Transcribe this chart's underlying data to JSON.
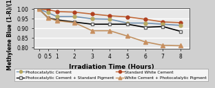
{
  "x": [
    0,
    0.5,
    1,
    2,
    3,
    4,
    5,
    6,
    7,
    8
  ],
  "photocatalytic_cement": [
    1.0,
    0.982,
    0.962,
    0.962,
    0.95,
    0.948,
    0.928,
    0.928,
    0.922,
    0.916
  ],
  "photocatalytic_cement_std_pigment": [
    1.0,
    0.955,
    0.945,
    0.933,
    0.922,
    0.922,
    0.922,
    0.906,
    0.91,
    0.885
  ],
  "standard_white_cement": [
    1.0,
    0.998,
    0.988,
    0.985,
    0.975,
    0.966,
    0.96,
    0.948,
    0.934,
    0.93
  ],
  "white_cement_photocatalytic_pigment": [
    1.0,
    0.955,
    0.94,
    0.93,
    0.888,
    0.888,
    0.86,
    0.83,
    0.812,
    0.81
  ],
  "series_colors": {
    "photocatalytic_cement": "#b8a860",
    "photocatalytic_cement_std_pigment": "#909090",
    "standard_white_cement": "#b04020",
    "white_cement_photocatalytic_pigment": "#c89060"
  },
  "line_colors": {
    "photocatalytic_cement": "#7090b0",
    "photocatalytic_cement_std_pigment": "#000000",
    "standard_white_cement": "#c06838",
    "white_cement_photocatalytic_pigment": "#c09060"
  },
  "ylim": [
    0.795,
    1.005
  ],
  "yticks": [
    0.8,
    0.85,
    0.9,
    0.95,
    1.0
  ],
  "xticks": [
    0,
    0.5,
    1,
    2,
    3,
    4,
    5,
    6,
    7,
    8
  ],
  "xlabel": "Irradiation Time (Hours)",
  "ylabel": "Methylene Blue (1-R)/(1-R0)",
  "plot_bg": "#e8e8e8",
  "fig_bg": "#d0d0d0",
  "grid_color": "#ffffff",
  "legend_labels": [
    "Photocatalytic Cement",
    "Photocatalytic Cement + Standard Pigment",
    "Standard White Cement",
    "White Cement + Photocatalytic Pigment"
  ]
}
